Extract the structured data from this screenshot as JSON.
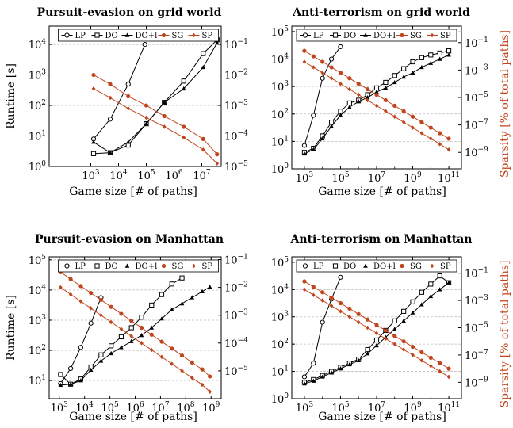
{
  "colors": {
    "black": "#000000",
    "orange": "#c0451e",
    "grid": "#bdbdbd"
  },
  "legend": [
    "LP",
    "DO",
    "DO+l",
    "SG",
    "SP"
  ],
  "chart_data": [
    {
      "type": "line",
      "title": "Pursuit-evasion on grid world",
      "xlabel": "Game size [# of paths]",
      "ylabel": "Runtime [s]",
      "y2label": "",
      "xscale": "log",
      "yscale": "log",
      "y2scale": "log",
      "xlim": [
        1.5,
        7.7
      ],
      "ylim": [
        0,
        4.6
      ],
      "y2lim": [
        -5,
        -0.4
      ],
      "x_ticks": [
        3,
        4,
        5,
        6,
        7
      ],
      "x_tick_labels": [
        "10^3",
        "10^4",
        "10^5",
        "10^6",
        "10^7"
      ],
      "y_ticks": [
        0,
        1,
        2,
        3,
        4
      ],
      "y_tick_labels": [
        "10^0",
        "10^1",
        "10^2",
        "10^3",
        "10^4"
      ],
      "y2_ticks": [
        -5,
        -4,
        -3,
        -2,
        -1
      ],
      "y2_tick_labels": [
        "10^-5",
        "10^-4",
        "10^-3",
        "10^-2",
        "10^-1"
      ],
      "series": [
        {
          "name": "LP",
          "axis": "left",
          "marker": "circle",
          "x": [
            3.1,
            3.7,
            4.35,
            4.95
          ],
          "y": [
            0.9,
            1.55,
            2.7,
            4.0
          ]
        },
        {
          "name": "DO",
          "axis": "left",
          "marker": "square",
          "x": [
            3.1,
            3.7,
            4.35,
            5.0,
            5.65,
            6.35,
            7.05,
            7.55
          ],
          "y": [
            0.42,
            0.45,
            0.7,
            1.4,
            2.1,
            2.8,
            3.7,
            4.15
          ]
        },
        {
          "name": "DO+l",
          "axis": "left",
          "marker": "triangle",
          "x": [
            3.1,
            3.7,
            4.35,
            5.0,
            5.65,
            6.35,
            7.05,
            7.55
          ],
          "y": [
            0.8,
            0.45,
            0.8,
            1.4,
            2.1,
            2.55,
            3.25,
            4.05
          ]
        },
        {
          "name": "SG",
          "axis": "right",
          "marker": "dot",
          "x": [
            3.1,
            3.7,
            4.35,
            5.0,
            5.65,
            6.35,
            7.05,
            7.55
          ],
          "y": [
            -2.0,
            -2.3,
            -2.7,
            -3.0,
            -3.35,
            -3.7,
            -4.1,
            -4.6
          ]
        },
        {
          "name": "SP",
          "axis": "right",
          "marker": "diamond",
          "x": [
            3.1,
            3.7,
            4.35,
            5.0,
            5.65,
            6.35,
            7.05,
            7.55
          ],
          "y": [
            -2.45,
            -2.75,
            -3.1,
            -3.4,
            -3.7,
            -4.05,
            -4.45,
            -4.9
          ]
        }
      ]
    },
    {
      "type": "line",
      "title": "Anti-terrorism on grid world",
      "xlabel": "Game size [# of paths]",
      "ylabel": "",
      "y2label": "Sparsity [% of total paths]",
      "xscale": "log",
      "yscale": "log",
      "y2scale": "log",
      "xlim": [
        2.3,
        11.7
      ],
      "ylim": [
        0,
        5.2
      ],
      "y2lim": [
        -10.2,
        0.2
      ],
      "x_ticks": [
        3,
        5,
        7,
        9,
        11
      ],
      "x_tick_labels": [
        "10^3",
        "10^5",
        "10^7",
        "10^9",
        "10^11"
      ],
      "y_ticks": [
        0,
        1,
        2,
        3,
        4,
        5
      ],
      "y_tick_labels": [
        "10^0",
        "10^1",
        "10^2",
        "10^3",
        "10^4",
        "10^5"
      ],
      "y2_ticks": [
        -9,
        -7,
        -5,
        -3,
        -1
      ],
      "y2_tick_labels": [
        "10^-9",
        "10^-7",
        "10^-5",
        "10^-3",
        "10^-1"
      ],
      "series": [
        {
          "name": "LP",
          "axis": "left",
          "marker": "circle",
          "x": [
            3.0,
            3.5,
            4.0,
            4.5,
            5.0
          ],
          "y": [
            0.85,
            1.95,
            3.3,
            4.0,
            4.45
          ]
        },
        {
          "name": "DO",
          "axis": "left",
          "marker": "square",
          "x": [
            3.0,
            3.5,
            4.0,
            4.5,
            5.0,
            5.5,
            6.0,
            6.5,
            7.0,
            7.5,
            8.0,
            8.5,
            9.0,
            9.5,
            10.0,
            10.5,
            11.0
          ],
          "y": [
            0.6,
            0.75,
            1.2,
            1.7,
            2.1,
            2.4,
            2.5,
            2.7,
            2.95,
            3.15,
            3.4,
            3.65,
            3.9,
            4.05,
            4.15,
            4.22,
            4.3
          ]
        },
        {
          "name": "DO+l",
          "axis": "left",
          "marker": "triangle",
          "x": [
            3.0,
            3.5,
            4.0,
            4.5,
            5.0,
            5.5,
            6.0,
            6.5,
            7.0,
            7.5,
            8.0,
            8.5,
            9.0,
            9.5,
            10.0,
            10.5,
            11.0
          ],
          "y": [
            0.55,
            0.7,
            1.1,
            1.55,
            1.95,
            2.25,
            2.45,
            2.6,
            2.8,
            2.95,
            3.15,
            3.35,
            3.5,
            3.7,
            3.85,
            4.0,
            4.15
          ]
        },
        {
          "name": "SG",
          "axis": "right",
          "marker": "dot",
          "x": [
            3.0,
            3.5,
            4.0,
            4.5,
            5.0,
            5.5,
            6.0,
            6.5,
            7.0,
            7.5,
            8.0,
            8.5,
            9.0,
            9.5,
            10.0,
            10.5,
            11.0
          ],
          "y": [
            -1.6,
            -2.0,
            -2.4,
            -2.8,
            -3.2,
            -3.6,
            -4.0,
            -4.4,
            -4.8,
            -5.2,
            -5.6,
            -6.0,
            -6.4,
            -6.8,
            -7.2,
            -7.6,
            -8.0
          ]
        },
        {
          "name": "SP",
          "axis": "right",
          "marker": "diamond",
          "x": [
            3.0,
            3.5,
            4.0,
            4.5,
            5.0,
            5.5,
            6.0,
            6.5,
            7.0,
            7.5,
            8.0,
            8.5,
            9.0,
            9.5,
            10.0,
            10.5,
            11.0
          ],
          "y": [
            -2.4,
            -2.8,
            -3.2,
            -3.6,
            -4.0,
            -4.4,
            -4.8,
            -5.2,
            -5.6,
            -6.0,
            -6.4,
            -6.8,
            -7.2,
            -7.6,
            -8.0,
            -8.4,
            -8.8
          ]
        }
      ]
    },
    {
      "type": "line",
      "title": "Pursuit-evasion on Manhattan",
      "xlabel": "Game size [# of paths]",
      "ylabel": "Runtime [s]",
      "y2label": "",
      "xscale": "log",
      "yscale": "log",
      "y2scale": "log",
      "xlim": [
        2.6,
        9.4
      ],
      "ylim": [
        0.4,
        5.1
      ],
      "y2lim": [
        -6,
        -0.9
      ],
      "x_ticks": [
        3,
        4,
        5,
        6,
        7,
        8,
        9
      ],
      "x_tick_labels": [
        "10^3",
        "10^4",
        "10^5",
        "10^6",
        "10^7",
        "10^8",
        "10^9"
      ],
      "y_ticks": [
        1,
        2,
        3,
        4,
        5
      ],
      "y_tick_labels": [
        "10^1",
        "10^2",
        "10^3",
        "10^4",
        "10^5"
      ],
      "y2_ticks": [
        -5,
        -4,
        -3,
        -2,
        -1
      ],
      "y2_tick_labels": [
        "10^-5",
        "10^-4",
        "10^-3",
        "10^-2",
        "10^-1"
      ],
      "series": [
        {
          "name": "LP",
          "axis": "left",
          "marker": "circle",
          "x": [
            3.05,
            3.45,
            3.85,
            4.25,
            4.65
          ],
          "y": [
            0.9,
            1.4,
            2.1,
            2.9,
            3.75
          ]
        },
        {
          "name": "DO",
          "axis": "left",
          "marker": "square",
          "x": [
            3.05,
            3.45,
            3.85,
            4.25,
            4.65,
            5.05,
            5.45,
            5.85,
            6.25,
            6.65,
            7.05,
            7.45,
            7.85
          ],
          "y": [
            1.2,
            0.88,
            1.05,
            1.45,
            1.85,
            2.15,
            2.45,
            2.75,
            3.1,
            3.5,
            3.85,
            4.2,
            4.4
          ]
        },
        {
          "name": "DO+l",
          "axis": "left",
          "marker": "triangle",
          "x": [
            3.05,
            3.45,
            3.85,
            4.25,
            4.65,
            5.05,
            5.45,
            5.85,
            6.25,
            6.65,
            7.05,
            7.45,
            7.85,
            8.25,
            8.65,
            8.95
          ],
          "y": [
            0.85,
            0.88,
            1.0,
            1.35,
            1.65,
            1.9,
            2.1,
            2.3,
            2.5,
            2.75,
            3.05,
            3.35,
            3.55,
            3.75,
            3.95,
            4.1
          ]
        },
        {
          "name": "SG",
          "axis": "right",
          "marker": "dot",
          "x": [
            3.05,
            3.45,
            3.85,
            4.25,
            4.65,
            5.05,
            5.45,
            5.85,
            6.25,
            6.65,
            7.05,
            7.45,
            7.85,
            8.25,
            8.65,
            8.95
          ],
          "y": [
            -1.45,
            -1.7,
            -1.95,
            -2.2,
            -2.45,
            -2.7,
            -2.95,
            -3.2,
            -3.45,
            -3.7,
            -3.95,
            -4.2,
            -4.45,
            -4.7,
            -4.95,
            -5.2
          ]
        },
        {
          "name": "SP",
          "axis": "right",
          "marker": "diamond",
          "x": [
            3.05,
            3.45,
            3.85,
            4.25,
            4.65,
            5.05,
            5.45,
            5.85,
            6.25,
            6.65,
            7.05,
            7.45,
            7.85,
            8.25,
            8.65,
            8.95
          ],
          "y": [
            -2.0,
            -2.25,
            -2.5,
            -2.75,
            -3.0,
            -3.25,
            -3.5,
            -3.75,
            -4.0,
            -4.25,
            -4.5,
            -4.75,
            -5.0,
            -5.25,
            -5.5,
            -5.75
          ]
        }
      ]
    },
    {
      "type": "line",
      "title": "Anti-terrorism on Manhattan",
      "xlabel": "Game size [# of paths]",
      "ylabel": "",
      "y2label": "Sparsity [% of total paths]",
      "xscale": "log",
      "yscale": "log",
      "y2scale": "log",
      "xlim": [
        2.3,
        11.7
      ],
      "ylim": [
        0,
        5.2
      ],
      "y2lim": [
        -10.2,
        0.2
      ],
      "x_ticks": [
        3,
        5,
        7,
        9,
        11
      ],
      "x_tick_labels": [
        "10^3",
        "10^5",
        "10^7",
        "10^9",
        "10^11"
      ],
      "y_ticks": [
        0,
        1,
        2,
        3,
        4,
        5
      ],
      "y_tick_labels": [
        "10^0",
        "10^1",
        "10^2",
        "10^3",
        "10^4",
        "10^5"
      ],
      "y2_ticks": [
        -9,
        -7,
        -5,
        -3,
        -1
      ],
      "y2_tick_labels": [
        "10^-9",
        "10^-7",
        "10^-5",
        "10^-3",
        "10^-1"
      ],
      "series": [
        {
          "name": "LP",
          "axis": "left",
          "marker": "circle",
          "x": [
            3.0,
            3.5,
            4.0,
            4.5,
            5.0
          ],
          "y": [
            0.8,
            1.3,
            2.8,
            3.65,
            4.45
          ]
        },
        {
          "name": "DO",
          "axis": "left",
          "marker": "square",
          "x": [
            3.0,
            3.5,
            4.0,
            4.5,
            5.0,
            5.5,
            6.0,
            6.5,
            7.0,
            7.5,
            8.0,
            8.5,
            9.0,
            9.5,
            10.0,
            10.5,
            11.0
          ],
          "y": [
            0.6,
            0.7,
            0.85,
            1.0,
            1.15,
            1.3,
            1.45,
            1.8,
            2.15,
            2.5,
            2.85,
            3.2,
            3.55,
            3.9,
            4.2,
            4.5,
            4.25
          ]
        },
        {
          "name": "DO+l",
          "axis": "left",
          "marker": "triangle",
          "x": [
            3.0,
            3.5,
            4.0,
            4.5,
            5.0,
            5.5,
            6.0,
            6.5,
            7.0,
            7.5,
            8.0,
            8.5,
            9.0,
            9.5,
            10.0,
            10.5,
            11.0
          ],
          "y": [
            0.55,
            0.65,
            0.8,
            0.95,
            1.1,
            1.25,
            1.4,
            1.65,
            1.95,
            2.25,
            2.55,
            2.85,
            3.15,
            3.45,
            3.75,
            4.0,
            4.25
          ]
        },
        {
          "name": "SG",
          "axis": "right",
          "marker": "dot",
          "x": [
            3.0,
            3.5,
            4.0,
            4.5,
            5.0,
            5.5,
            6.0,
            6.5,
            7.0,
            7.5,
            8.0,
            8.5,
            9.0,
            9.5,
            10.0,
            10.5,
            11.0
          ],
          "y": [
            -1.6,
            -2.0,
            -2.4,
            -2.8,
            -3.2,
            -3.6,
            -4.0,
            -4.4,
            -4.8,
            -5.2,
            -5.6,
            -6.0,
            -6.4,
            -6.8,
            -7.2,
            -7.6,
            -8.0
          ]
        },
        {
          "name": "SP",
          "axis": "right",
          "marker": "diamond",
          "x": [
            3.0,
            3.5,
            4.0,
            4.5,
            5.0,
            5.5,
            6.0,
            6.5,
            7.0,
            7.5,
            8.0,
            8.5,
            9.0,
            9.5,
            10.0,
            10.5,
            11.0
          ],
          "y": [
            -2.2,
            -2.6,
            -3.0,
            -3.4,
            -3.8,
            -4.2,
            -4.6,
            -5.0,
            -5.4,
            -5.8,
            -6.2,
            -6.6,
            -7.0,
            -7.4,
            -7.8,
            -8.2,
            -8.6
          ]
        }
      ]
    }
  ]
}
